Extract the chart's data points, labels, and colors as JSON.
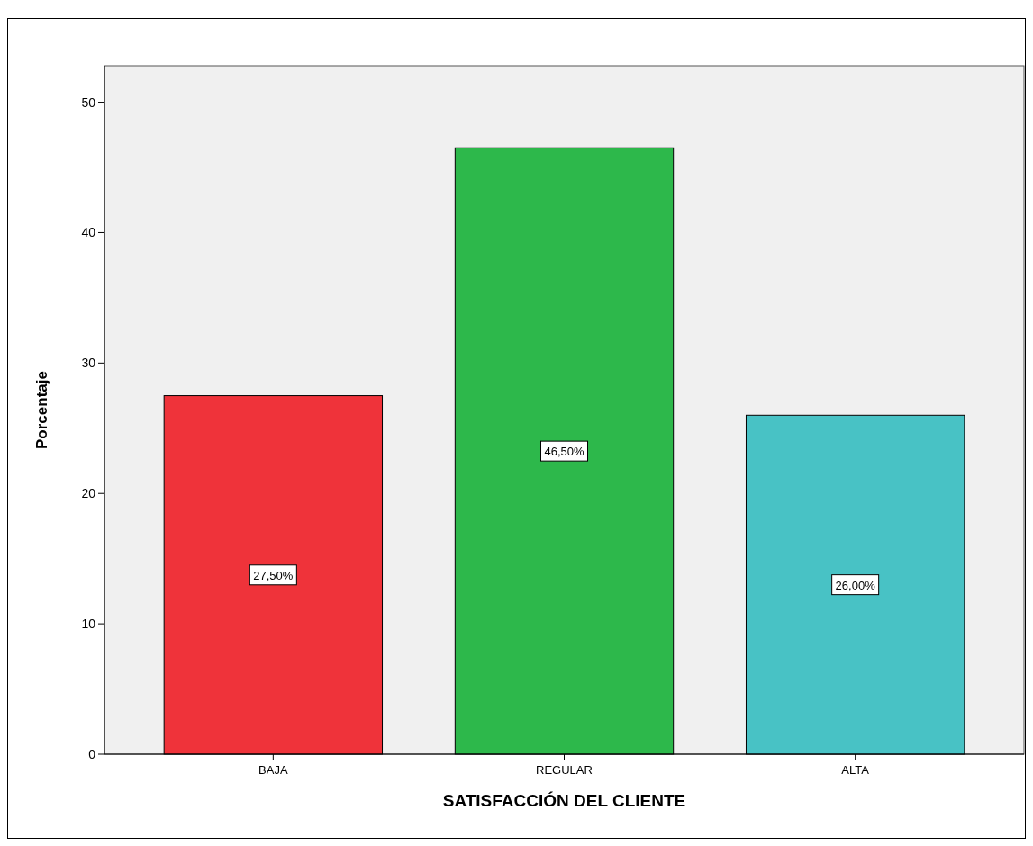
{
  "chart_data": {
    "type": "bar",
    "xlabel": "SATISFACCIÓN DEL CLIENTE",
    "ylabel": "Porcentaje",
    "categories": [
      "BAJA",
      "REGULAR",
      "ALTA"
    ],
    "values": [
      27.5,
      46.5,
      26.0
    ],
    "colors": [
      "#ef333a",
      "#2db84b",
      "#48c2c5"
    ],
    "value_labels": [
      "27,50%",
      "46,50%",
      "26,00%"
    ],
    "ylim": [
      0,
      52.8
    ],
    "yticks": [
      0,
      10,
      20,
      30,
      40,
      50
    ],
    "grid": false
  }
}
